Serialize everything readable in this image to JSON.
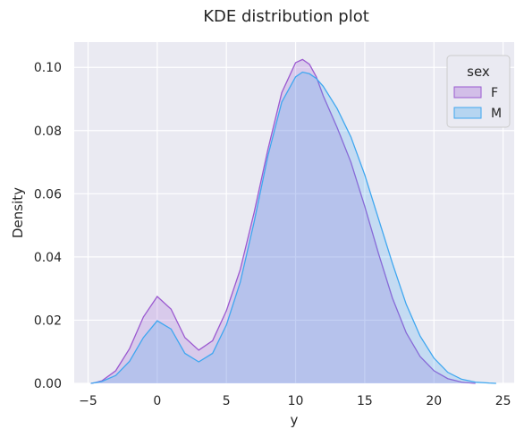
{
  "chart_data": {
    "type": "area",
    "title": "KDE distribution plot",
    "xlabel": "y",
    "ylabel": "Density",
    "xlim": [
      -6,
      25.8
    ],
    "ylim": [
      0,
      0.108
    ],
    "xticks": [
      -5,
      0,
      5,
      10,
      15,
      20,
      25
    ],
    "yticks": [
      0.0,
      0.02,
      0.04,
      0.06,
      0.08,
      0.1
    ],
    "grid": true,
    "legend": {
      "title": "sex",
      "placement": "top-right"
    },
    "series": [
      {
        "name": "F",
        "color": "#9b59d0",
        "x": [
          -4.8,
          -4.5,
          -4,
          -3,
          -2,
          -1,
          0,
          1,
          2,
          3,
          4,
          5,
          6,
          7,
          8,
          9,
          10,
          10.5,
          11,
          11.5,
          12,
          13,
          14,
          15,
          16,
          17,
          18,
          19,
          20,
          21,
          22,
          23
        ],
        "y": [
          0,
          0.0002,
          0.0008,
          0.004,
          0.011,
          0.021,
          0.0275,
          0.0235,
          0.0145,
          0.0105,
          0.0135,
          0.023,
          0.036,
          0.054,
          0.074,
          0.092,
          0.1015,
          0.1025,
          0.101,
          0.097,
          0.091,
          0.081,
          0.07,
          0.056,
          0.041,
          0.027,
          0.016,
          0.0085,
          0.004,
          0.0015,
          0.0004,
          0
        ]
      },
      {
        "name": "M",
        "color": "#3fa7f0",
        "x": [
          -4.8,
          -4.5,
          -4,
          -3,
          -2,
          -1,
          0,
          1,
          2,
          3,
          4,
          5,
          6,
          7,
          8,
          9,
          10,
          10.5,
          11,
          11.5,
          12,
          13,
          14,
          15,
          16,
          17,
          18,
          19,
          20,
          21,
          22,
          23,
          24,
          24.5
        ],
        "y": [
          0,
          0.0002,
          0.0006,
          0.0025,
          0.007,
          0.0145,
          0.0198,
          0.0172,
          0.0095,
          0.0068,
          0.0095,
          0.0185,
          0.032,
          0.051,
          0.072,
          0.089,
          0.097,
          0.0985,
          0.098,
          0.0965,
          0.094,
          0.087,
          0.078,
          0.066,
          0.052,
          0.038,
          0.025,
          0.015,
          0.008,
          0.0035,
          0.0013,
          0.0004,
          0.0001,
          0
        ]
      }
    ]
  }
}
